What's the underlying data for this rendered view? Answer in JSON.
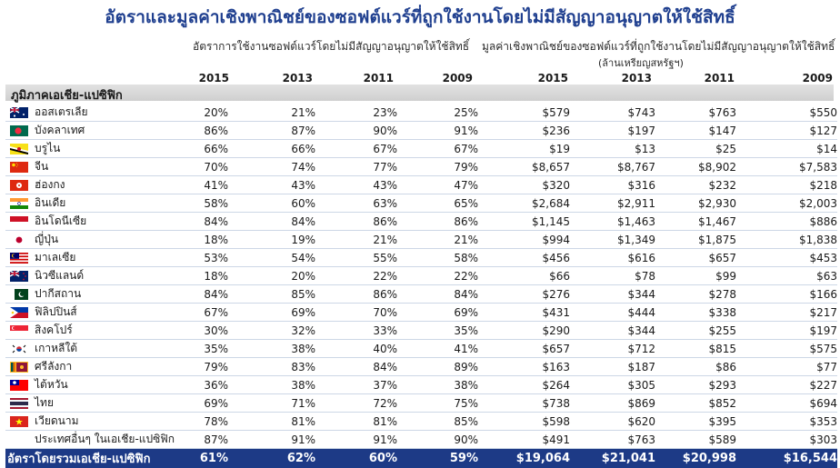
{
  "title": "อัตราและมูลค่าเชิงพาณิชย์ของซอฟต์แวร์ที่ถูกใช้งานโดยไม่มีสัญญาอนุญาตให้ใช้สิทธิ์",
  "headers": {
    "rate": "อัตราการใช้งานซอฟต์แวร์โดยไม่มีสัญญาอนุญาตให้ใช้สิทธิ์",
    "value": "มูลค่าเชิงพาณิชย์ของซอฟต์แวร์ที่ถูกใช้งานโดยไม่มีสัญญาอนุญาตให้ใช้สิทธิ์",
    "value_unit": "(ล้านเหรียญสหรัฐฯ)"
  },
  "years": [
    "2015",
    "2013",
    "2011",
    "2009",
    "2015",
    "2013",
    "2011",
    "2009"
  ],
  "region": "ภูมิภาคเอเชีย-แปซิฟิก",
  "rows": [
    {
      "name": "ออสเตรเลีย",
      "flag": "australia-flag-icon",
      "vals": [
        "20%",
        "21%",
        "23%",
        "25%",
        "$579",
        "$743",
        "$763",
        "$550"
      ]
    },
    {
      "name": "บังคลาเทศ",
      "flag": "bangladesh-flag-icon",
      "vals": [
        "86%",
        "87%",
        "90%",
        "91%",
        "$236",
        "$197",
        "$147",
        "$127"
      ]
    },
    {
      "name": "บรูไน",
      "flag": "brunei-flag-icon",
      "vals": [
        "66%",
        "66%",
        "67%",
        "67%",
        "$19",
        "$13",
        "$25",
        "$14"
      ]
    },
    {
      "name": "จีน",
      "flag": "china-flag-icon",
      "vals": [
        "70%",
        "74%",
        "77%",
        "79%",
        "$8,657",
        "$8,767",
        "$8,902",
        "$7,583"
      ]
    },
    {
      "name": "ฮ่องกง",
      "flag": "hong-kong-flag-icon",
      "vals": [
        "41%",
        "43%",
        "43%",
        "47%",
        "$320",
        "$316",
        "$232",
        "$218"
      ]
    },
    {
      "name": "อินเดีย",
      "flag": "india-flag-icon",
      "vals": [
        "58%",
        "60%",
        "63%",
        "65%",
        "$2,684",
        "$2,911",
        "$2,930",
        "$2,003"
      ]
    },
    {
      "name": "อินโดนีเซีย",
      "flag": "indonesia-flag-icon",
      "vals": [
        "84%",
        "84%",
        "86%",
        "86%",
        "$1,145",
        "$1,463",
        "$1,467",
        "$886"
      ]
    },
    {
      "name": "ญี่ปุ่น",
      "flag": "japan-flag-icon",
      "vals": [
        "18%",
        "19%",
        "21%",
        "21%",
        "$994",
        "$1,349",
        "$1,875",
        "$1,838"
      ]
    },
    {
      "name": "มาเลเซีย",
      "flag": "malaysia-flag-icon",
      "vals": [
        "53%",
        "54%",
        "55%",
        "58%",
        "$456",
        "$616",
        "$657",
        "$453"
      ]
    },
    {
      "name": "นิวซีแลนด์",
      "flag": "new-zealand-flag-icon",
      "vals": [
        "18%",
        "20%",
        "22%",
        "22%",
        "$66",
        "$78",
        "$99",
        "$63"
      ]
    },
    {
      "name": "ปากีสถาน",
      "flag": "pakistan-flag-icon",
      "vals": [
        "84%",
        "85%",
        "86%",
        "84%",
        "$276",
        "$344",
        "$278",
        "$166"
      ]
    },
    {
      "name": "ฟิลิปปินส์",
      "flag": "philippines-flag-icon",
      "vals": [
        "67%",
        "69%",
        "70%",
        "69%",
        "$431",
        "$444",
        "$338",
        "$217"
      ]
    },
    {
      "name": "สิงคโปร์",
      "flag": "singapore-flag-icon",
      "vals": [
        "30%",
        "32%",
        "33%",
        "35%",
        "$290",
        "$344",
        "$255",
        "$197"
      ]
    },
    {
      "name": "เกาหลีใต้",
      "flag": "south-korea-flag-icon",
      "vals": [
        "35%",
        "38%",
        "40%",
        "41%",
        "$657",
        "$712",
        "$815",
        "$575"
      ]
    },
    {
      "name": "ศรีลังกา",
      "flag": "sri-lanka-flag-icon",
      "vals": [
        "79%",
        "83%",
        "84%",
        "89%",
        "$163",
        "$187",
        "$86",
        "$77"
      ]
    },
    {
      "name": "ไต้หวัน",
      "flag": "taiwan-flag-icon",
      "vals": [
        "36%",
        "38%",
        "37%",
        "38%",
        "$264",
        "$305",
        "$293",
        "$227"
      ]
    },
    {
      "name": "ไทย",
      "flag": "thailand-flag-icon",
      "vals": [
        "69%",
        "71%",
        "72%",
        "75%",
        "$738",
        "$869",
        "$852",
        "$694"
      ]
    },
    {
      "name": "เวียดนาม",
      "flag": "vietnam-flag-icon",
      "vals": [
        "78%",
        "81%",
        "81%",
        "85%",
        "$598",
        "$620",
        "$395",
        "$353"
      ]
    },
    {
      "name": "ประเทศอื่นๆ ในเอเชีย-แปซิฟิก",
      "flag": "",
      "vals": [
        "87%",
        "91%",
        "91%",
        "90%",
        "$491",
        "$763",
        "$589",
        "$303"
      ]
    }
  ],
  "total": {
    "name": "อัตราโดยรวมเอเชีย-แปซิฟิก",
    "vals": [
      "61%",
      "62%",
      "60%",
      "59%",
      "$19,064",
      "$21,041",
      "$20,998",
      "$16,544"
    ]
  },
  "colors": {
    "title": "#1f3f8f",
    "total_bg": "#1d3a86"
  }
}
